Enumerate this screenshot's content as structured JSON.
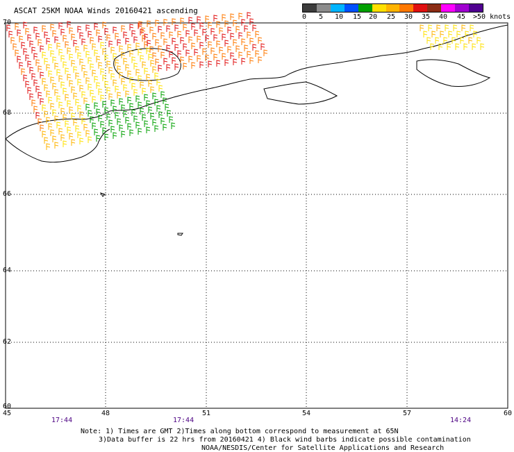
{
  "header": {
    "title": "ASCAT 25KM NOAA Winds 20160421 ascending"
  },
  "scale": {
    "labels": [
      "0",
      "5",
      "10",
      "15",
      "20",
      "25",
      "30",
      "35",
      "40",
      "45",
      ">50 knots"
    ],
    "colors": [
      "#3c3c3c",
      "#8c8c8c",
      "#00b4ff",
      "#0050ff",
      "#00a000",
      "#ffe000",
      "#ffb400",
      "#ff7800",
      "#e01010",
      "#8b2c14",
      "#ff00ff",
      "#a000d0",
      "#500090"
    ]
  },
  "axes": {
    "x_ticks": [
      "45",
      "48",
      "51",
      "54",
      "57",
      "60"
    ],
    "y_ticks": [
      "70",
      "68",
      "66",
      "64",
      "62",
      "60"
    ]
  },
  "times": [
    "17:44",
    "17:44",
    "14:24"
  ],
  "notes": {
    "line1": "Note: 1) Times are GMT 2)Times along bottom correspond to measurement at 65N",
    "line2": "3)Data buffer is 22 hrs from 20160421 4) Black wind barbs indicate possible contamination",
    "line3": "NOAA/NESDIS/Center for Satellite Applications and Research"
  }
}
